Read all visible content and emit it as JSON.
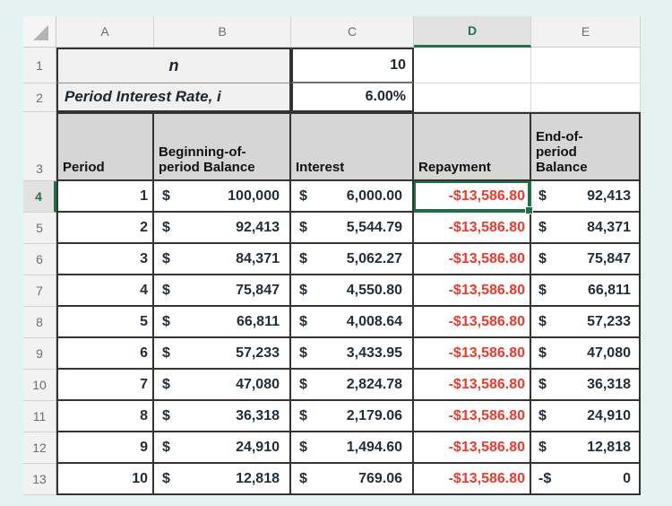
{
  "app": {
    "type": "spreadsheet",
    "selected_cell": "D4"
  },
  "colors": {
    "accent_green": "#217346",
    "negative_red": "#ee3a2e",
    "table_header_fill": "#d6d6d6",
    "param_fill": "#f0f0f0",
    "canvas": "#e4f2f2"
  },
  "column_headers": [
    "A",
    "B",
    "C",
    "D",
    "E"
  ],
  "row_headers": [
    "1",
    "2",
    "3",
    "4",
    "5",
    "6",
    "7",
    "8",
    "9",
    "10",
    "11",
    "12",
    "13"
  ],
  "params": {
    "n_label": "n",
    "n_value": "10",
    "rate_label": "Period Interest Rate, i",
    "rate_value": "6.00%"
  },
  "table": {
    "headers": {
      "period": "Period",
      "beginning": "Beginning-of-period Balance",
      "interest": "Interest",
      "repayment": "Repayment",
      "end": "End-of-period Balance"
    },
    "rows": [
      {
        "period": "1",
        "beg_cur": "$",
        "beg_amt": "100,000",
        "int_cur": "$",
        "int_amt": "6,000.00",
        "repay": "-$13,586.80",
        "end_cur": "$",
        "end_amt": "92,413"
      },
      {
        "period": "2",
        "beg_cur": "$",
        "beg_amt": "92,413",
        "int_cur": "$",
        "int_amt": "5,544.79",
        "repay": "-$13,586.80",
        "end_cur": "$",
        "end_amt": "84,371"
      },
      {
        "period": "3",
        "beg_cur": "$",
        "beg_amt": "84,371",
        "int_cur": "$",
        "int_amt": "5,062.27",
        "repay": "-$13,586.80",
        "end_cur": "$",
        "end_amt": "75,847"
      },
      {
        "period": "4",
        "beg_cur": "$",
        "beg_amt": "75,847",
        "int_cur": "$",
        "int_amt": "4,550.80",
        "repay": "-$13,586.80",
        "end_cur": "$",
        "end_amt": "66,811"
      },
      {
        "period": "5",
        "beg_cur": "$",
        "beg_amt": "66,811",
        "int_cur": "$",
        "int_amt": "4,008.64",
        "repay": "-$13,586.80",
        "end_cur": "$",
        "end_amt": "57,233"
      },
      {
        "period": "6",
        "beg_cur": "$",
        "beg_amt": "57,233",
        "int_cur": "$",
        "int_amt": "3,433.95",
        "repay": "-$13,586.80",
        "end_cur": "$",
        "end_amt": "47,080"
      },
      {
        "period": "7",
        "beg_cur": "$",
        "beg_amt": "47,080",
        "int_cur": "$",
        "int_amt": "2,824.78",
        "repay": "-$13,586.80",
        "end_cur": "$",
        "end_amt": "36,318"
      },
      {
        "period": "8",
        "beg_cur": "$",
        "beg_amt": "36,318",
        "int_cur": "$",
        "int_amt": "2,179.06",
        "repay": "-$13,586.80",
        "end_cur": "$",
        "end_amt": "24,910"
      },
      {
        "period": "9",
        "beg_cur": "$",
        "beg_amt": "24,910",
        "int_cur": "$",
        "int_amt": "1,494.60",
        "repay": "-$13,586.80",
        "end_cur": "$",
        "end_amt": "12,818"
      },
      {
        "period": "10",
        "beg_cur": "$",
        "beg_amt": "12,818",
        "int_cur": "$",
        "int_amt": "769.06",
        "repay": "-$13,586.80",
        "end_cur": "-$",
        "end_amt": "0"
      }
    ]
  }
}
